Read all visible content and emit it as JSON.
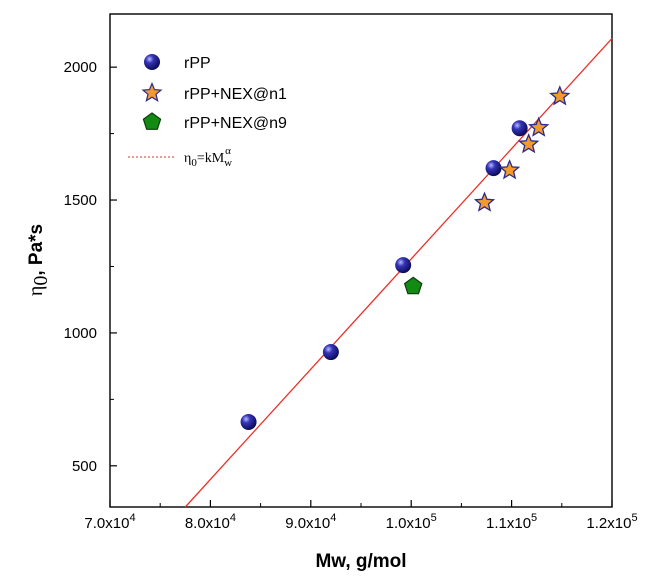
{
  "chart_data": {
    "type": "scatter",
    "title": "",
    "xlabel": "Mw, g/mol",
    "ylabel_symbol": "η",
    "ylabel_sub": "0",
    "ylabel_rest": ", Pa*s",
    "xlim": [
      70000,
      120000
    ],
    "ylim": [
      345,
      2200
    ],
    "xticks": [
      70000,
      80000,
      90000,
      100000,
      110000,
      120000
    ],
    "xtick_labels": [
      {
        "mant": "7.0x10",
        "exp": "4"
      },
      {
        "mant": "8.0x10",
        "exp": "4"
      },
      {
        "mant": "9.0x10",
        "exp": "4"
      },
      {
        "mant": "1.0x10",
        "exp": "5"
      },
      {
        "mant": "1.1x10",
        "exp": "5"
      },
      {
        "mant": "1.2x10",
        "exp": "5"
      }
    ],
    "yticks": [
      500,
      1000,
      1500,
      2000
    ],
    "ytick_labels": [
      "500",
      "1000",
      "1500",
      "2000"
    ],
    "grid": false,
    "legend_position": "top-left",
    "series": [
      {
        "name": "rPP",
        "marker": "sphere",
        "color": "#1a1a8c",
        "points": [
          {
            "x": 83800,
            "y": 665
          },
          {
            "x": 92000,
            "y": 928
          },
          {
            "x": 99200,
            "y": 1255
          },
          {
            "x": 108200,
            "y": 1620
          },
          {
            "x": 110800,
            "y": 1770
          }
        ]
      },
      {
        "name": "rPP+NEX@n1",
        "marker": "star",
        "color": "#f39a2e",
        "edge_color": "#2b2b8c",
        "points": [
          {
            "x": 107300,
            "y": 1490
          },
          {
            "x": 109800,
            "y": 1612
          },
          {
            "x": 111700,
            "y": 1710
          },
          {
            "x": 112700,
            "y": 1772
          },
          {
            "x": 114800,
            "y": 1890
          }
        ]
      },
      {
        "name": "rPP+NEX@n9",
        "marker": "pentagon",
        "color": "#138a13",
        "edge_color": "#0b3d0b",
        "points": [
          {
            "x": 100200,
            "y": 1175
          }
        ]
      }
    ],
    "fit_line": {
      "legend_label": "η0=kMwα",
      "legend_parts": {
        "eta": "η",
        "sub0": "0",
        "eq": "=kM",
        "subw": "w",
        "supa": "α"
      },
      "color": "#e8322a",
      "points": [
        {
          "x": 77500,
          "y": 345
        },
        {
          "x": 120000,
          "y": 2108
        }
      ]
    }
  }
}
